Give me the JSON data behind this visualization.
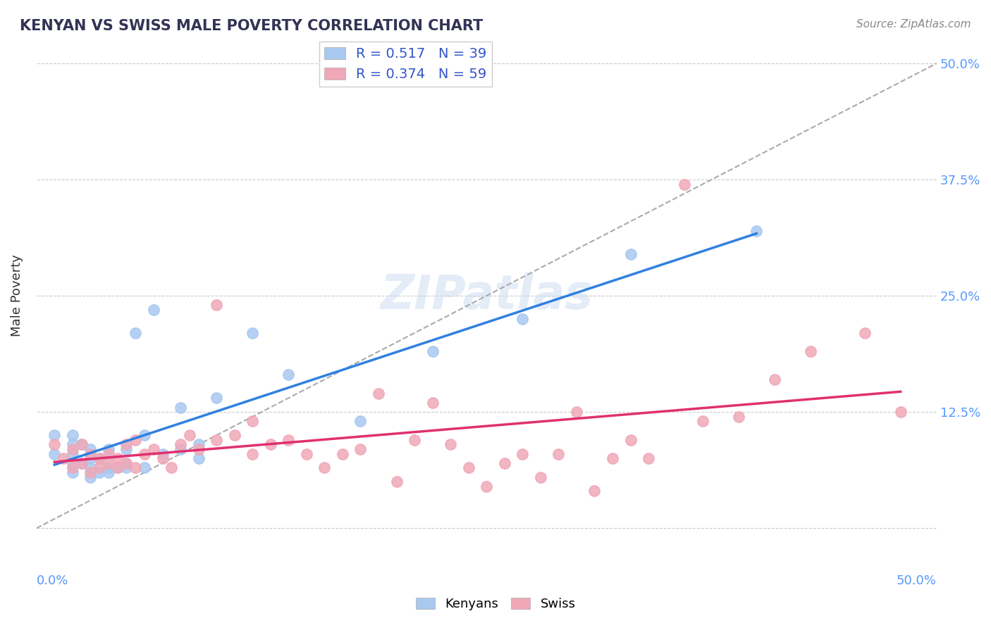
{
  "title": "KENYAN VS SWISS MALE POVERTY CORRELATION CHART",
  "source": "Source: ZipAtlas.com",
  "ylabel": "Male Poverty",
  "xlim": [
    0.0,
    0.5
  ],
  "ylim": [
    -0.02,
    0.52
  ],
  "yticks": [
    0.0,
    0.125,
    0.25,
    0.375,
    0.5
  ],
  "ytick_labels": [
    "",
    "12.5%",
    "25.0%",
    "37.5%",
    "50.0%"
  ],
  "legend_R_kenyan": "0.517",
  "legend_N_kenyan": "39",
  "legend_R_swiss": "0.374",
  "legend_N_swiss": "59",
  "kenyan_color": "#a8c8f0",
  "swiss_color": "#f0a8b8",
  "kenyan_line_color": "#3080e0",
  "swiss_line_color": "#e03070",
  "bg_color": "#ffffff",
  "watermark_text": "ZIPatlas",
  "kenyan_scatter_x": [
    0.01,
    0.01,
    0.02,
    0.02,
    0.02,
    0.02,
    0.02,
    0.025,
    0.025,
    0.03,
    0.03,
    0.03,
    0.03,
    0.035,
    0.035,
    0.04,
    0.04,
    0.04,
    0.045,
    0.05,
    0.05,
    0.05,
    0.055,
    0.06,
    0.06,
    0.065,
    0.07,
    0.08,
    0.08,
    0.09,
    0.09,
    0.1,
    0.12,
    0.14,
    0.18,
    0.22,
    0.27,
    0.33,
    0.4
  ],
  "kenyan_scatter_y": [
    0.08,
    0.1,
    0.06,
    0.07,
    0.08,
    0.09,
    0.1,
    0.07,
    0.09,
    0.055,
    0.065,
    0.075,
    0.085,
    0.06,
    0.075,
    0.06,
    0.065,
    0.085,
    0.065,
    0.07,
    0.065,
    0.085,
    0.21,
    0.065,
    0.1,
    0.235,
    0.08,
    0.085,
    0.13,
    0.075,
    0.09,
    0.14,
    0.21,
    0.165,
    0.115,
    0.19,
    0.225,
    0.295,
    0.32
  ],
  "swiss_scatter_x": [
    0.01,
    0.015,
    0.02,
    0.02,
    0.025,
    0.025,
    0.03,
    0.03,
    0.035,
    0.035,
    0.04,
    0.04,
    0.045,
    0.045,
    0.05,
    0.05,
    0.055,
    0.055,
    0.06,
    0.065,
    0.07,
    0.075,
    0.08,
    0.085,
    0.09,
    0.1,
    0.1,
    0.11,
    0.12,
    0.12,
    0.13,
    0.14,
    0.15,
    0.16,
    0.17,
    0.18,
    0.19,
    0.2,
    0.21,
    0.22,
    0.23,
    0.24,
    0.25,
    0.26,
    0.27,
    0.28,
    0.29,
    0.3,
    0.31,
    0.32,
    0.33,
    0.34,
    0.36,
    0.37,
    0.39,
    0.41,
    0.43,
    0.46,
    0.48
  ],
  "swiss_scatter_y": [
    0.09,
    0.075,
    0.065,
    0.085,
    0.07,
    0.09,
    0.06,
    0.08,
    0.065,
    0.075,
    0.07,
    0.08,
    0.065,
    0.075,
    0.07,
    0.09,
    0.065,
    0.095,
    0.08,
    0.085,
    0.075,
    0.065,
    0.09,
    0.1,
    0.085,
    0.095,
    0.24,
    0.1,
    0.08,
    0.115,
    0.09,
    0.095,
    0.08,
    0.065,
    0.08,
    0.085,
    0.145,
    0.05,
    0.095,
    0.135,
    0.09,
    0.065,
    0.045,
    0.07,
    0.08,
    0.055,
    0.08,
    0.125,
    0.04,
    0.075,
    0.095,
    0.075,
    0.37,
    0.115,
    0.12,
    0.16,
    0.19,
    0.21,
    0.125
  ]
}
